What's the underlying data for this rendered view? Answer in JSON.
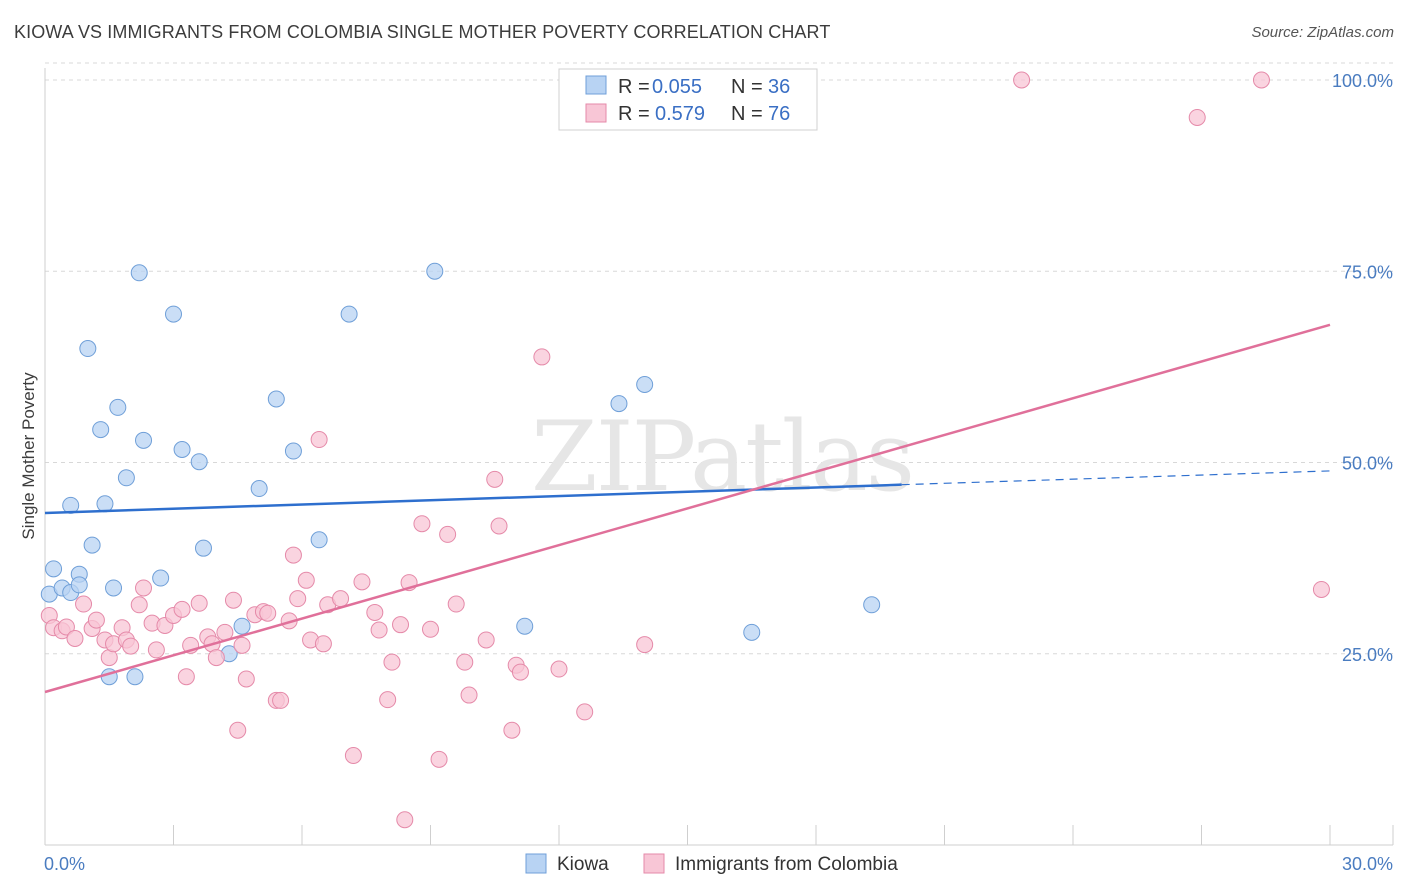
{
  "title": "KIOWA VS IMMIGRANTS FROM COLOMBIA SINGLE MOTHER POVERTY CORRELATION CHART",
  "source": "Source: ZipAtlas.com",
  "watermark": "ZIPatlas",
  "colors": {
    "kiowa_fill": "#b8d3f3",
    "kiowa_stroke": "#6f9fd8",
    "kiowa_line": "#2e6fce",
    "colombia_fill": "#f8c6d6",
    "colombia_stroke": "#e58aa9",
    "colombia_line": "#e0709a",
    "tick_text": "#4a7cc0",
    "grid": "#d8d8d8"
  },
  "legend": {
    "rows": [
      {
        "r_label": "R = ",
        "r_value": "0.055",
        "n_label": "N = ",
        "n_value": "36"
      },
      {
        "r_label": "R = ",
        "r_value": "0.579",
        "n_label": "N = ",
        "n_value": "76"
      }
    ]
  },
  "chart_data": {
    "type": "scatter",
    "title": "KIOWA VS IMMIGRANTS FROM COLOMBIA SINGLE MOTHER POVERTY CORRELATION CHART",
    "xlabel": "",
    "ylabel": "Single Mother Poverty",
    "xlim": [
      0,
      30
    ],
    "ylim": [
      0,
      105
    ],
    "x_tick_labels": [
      "0.0%",
      "30.0%"
    ],
    "y_ticks": [
      25,
      50,
      75,
      100
    ],
    "y_tick_labels": [
      "25.0%",
      "50.0%",
      "75.0%",
      "100.0%"
    ],
    "legend_position": "top-center",
    "series": [
      {
        "name": "Kiowa",
        "points": [
          [
            0.1,
            32.8
          ],
          [
            0.2,
            36.1
          ],
          [
            0.4,
            33.6
          ],
          [
            0.6,
            44.4
          ],
          [
            0.6,
            33.0
          ],
          [
            0.8,
            35.4
          ],
          [
            0.8,
            34.0
          ],
          [
            1.0,
            64.9
          ],
          [
            1.1,
            39.2
          ],
          [
            1.3,
            54.3
          ],
          [
            1.4,
            44.6
          ],
          [
            1.5,
            22.0
          ],
          [
            1.6,
            33.6
          ],
          [
            1.7,
            57.2
          ],
          [
            1.9,
            48.0
          ],
          [
            2.1,
            22.0
          ],
          [
            2.2,
            74.8
          ],
          [
            2.3,
            52.9
          ],
          [
            2.7,
            34.9
          ],
          [
            3.0,
            69.4
          ],
          [
            3.2,
            51.7
          ],
          [
            3.6,
            50.1
          ],
          [
            3.7,
            38.8
          ],
          [
            4.6,
            28.6
          ],
          [
            5.0,
            46.6
          ],
          [
            5.4,
            58.3
          ],
          [
            5.8,
            51.5
          ],
          [
            6.4,
            39.9
          ],
          [
            7.1,
            69.4
          ],
          [
            9.1,
            75.0
          ],
          [
            11.2,
            28.6
          ],
          [
            13.4,
            57.7
          ],
          [
            14.0,
            60.2
          ],
          [
            16.5,
            27.8
          ],
          [
            19.3,
            31.4
          ],
          [
            4.3,
            25.0
          ]
        ]
      },
      {
        "name": "Immigrants from Colombia",
        "points": [
          [
            0.1,
            30.0
          ],
          [
            0.2,
            28.4
          ],
          [
            0.4,
            28.0
          ],
          [
            0.5,
            28.5
          ],
          [
            0.7,
            27.0
          ],
          [
            0.9,
            31.5
          ],
          [
            1.1,
            28.3
          ],
          [
            1.2,
            29.4
          ],
          [
            1.4,
            26.8
          ],
          [
            1.5,
            24.5
          ],
          [
            1.6,
            26.3
          ],
          [
            1.8,
            28.4
          ],
          [
            1.9,
            26.8
          ],
          [
            2.0,
            26.0
          ],
          [
            2.2,
            31.4
          ],
          [
            2.3,
            33.6
          ],
          [
            2.5,
            29.0
          ],
          [
            2.6,
            25.5
          ],
          [
            2.8,
            28.7
          ],
          [
            3.0,
            30.0
          ],
          [
            3.2,
            30.8
          ],
          [
            3.3,
            22.0
          ],
          [
            3.4,
            26.1
          ],
          [
            3.6,
            31.6
          ],
          [
            3.8,
            27.2
          ],
          [
            3.9,
            26.3
          ],
          [
            4.0,
            24.5
          ],
          [
            4.2,
            27.8
          ],
          [
            4.4,
            32.0
          ],
          [
            4.5,
            15.0
          ],
          [
            4.6,
            26.1
          ],
          [
            4.7,
            21.7
          ],
          [
            4.9,
            30.1
          ],
          [
            5.1,
            30.5
          ],
          [
            5.2,
            30.3
          ],
          [
            5.4,
            18.9
          ],
          [
            5.5,
            18.9
          ],
          [
            5.7,
            29.3
          ],
          [
            5.8,
            37.9
          ],
          [
            5.9,
            32.2
          ],
          [
            6.1,
            34.6
          ],
          [
            6.2,
            26.8
          ],
          [
            6.5,
            26.3
          ],
          [
            6.6,
            31.4
          ],
          [
            6.9,
            32.2
          ],
          [
            6.4,
            53.0
          ],
          [
            7.2,
            11.7
          ],
          [
            7.4,
            34.4
          ],
          [
            7.7,
            30.4
          ],
          [
            7.8,
            28.1
          ],
          [
            8.0,
            19.0
          ],
          [
            8.1,
            23.9
          ],
          [
            8.3,
            28.8
          ],
          [
            8.4,
            3.3
          ],
          [
            8.5,
            34.3
          ],
          [
            8.8,
            42.0
          ],
          [
            9.0,
            28.2
          ],
          [
            9.2,
            11.2
          ],
          [
            9.4,
            40.6
          ],
          [
            9.6,
            31.5
          ],
          [
            9.8,
            23.9
          ],
          [
            9.9,
            19.6
          ],
          [
            10.3,
            26.8
          ],
          [
            10.5,
            47.8
          ],
          [
            10.6,
            41.7
          ],
          [
            10.9,
            15.0
          ],
          [
            11.0,
            23.5
          ],
          [
            11.1,
            22.6
          ],
          [
            11.6,
            63.8
          ],
          [
            12.0,
            23.0
          ],
          [
            12.6,
            17.4
          ],
          [
            14.0,
            26.2
          ],
          [
            22.8,
            100.0
          ],
          [
            26.9,
            95.1
          ],
          [
            28.4,
            100.0
          ],
          [
            29.8,
            33.4
          ]
        ]
      }
    ],
    "trend_lines": [
      {
        "name": "Kiowa",
        "x0": 0,
        "y0": 43.4,
        "x1": 20.0,
        "y1": 47.1,
        "dashed_to_x": 30.0,
        "dashed_to_y": 48.9
      },
      {
        "name": "Immigrants from Colombia",
        "x0": 0,
        "y0": 20.0,
        "x1": 30.0,
        "y1": 68.0
      }
    ]
  },
  "bottom_legend": {
    "items": [
      {
        "label": "Kiowa"
      },
      {
        "label": "Immigrants from Colombia"
      }
    ]
  }
}
